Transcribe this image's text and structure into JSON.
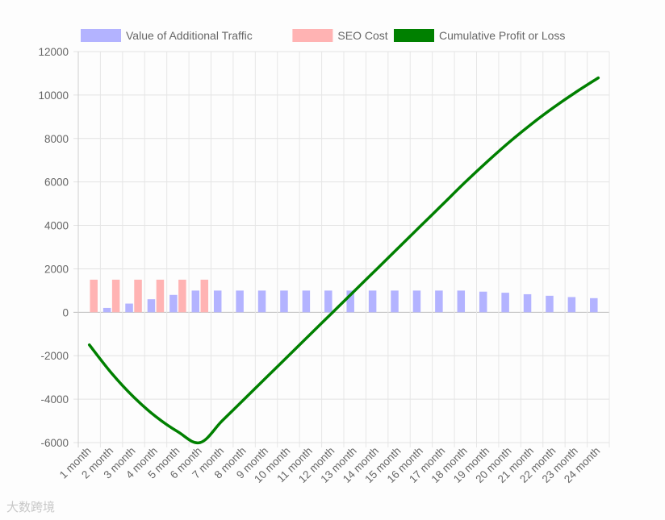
{
  "chart_data": {
    "type": "bar",
    "categories": [
      "1 month",
      "2 month",
      "3 month",
      "4 month",
      "5 month",
      "6 month",
      "7 month",
      "8 month",
      "9 month",
      "10 month",
      "11 month",
      "12 month",
      "13 month",
      "14 month",
      "15 month",
      "16 month",
      "17 month",
      "18 month",
      "19 month",
      "20 month",
      "21 month",
      "22 month",
      "23 month",
      "24 month"
    ],
    "series": [
      {
        "name": "Value of Additional Traffic",
        "type": "bar",
        "color": "#b3b3ff",
        "values": [
          0,
          200,
          400,
          600,
          800,
          1000,
          1000,
          1000,
          1000,
          1000,
          1000,
          1000,
          1000,
          1000,
          1000,
          1000,
          1000,
          1000,
          950,
          900,
          830,
          760,
          700,
          650
        ]
      },
      {
        "name": "SEO Cost",
        "type": "bar",
        "color": "#ffb3b3",
        "values": [
          1500,
          1500,
          1500,
          1500,
          1500,
          1500,
          0,
          0,
          0,
          0,
          0,
          0,
          0,
          0,
          0,
          0,
          0,
          0,
          0,
          0,
          0,
          0,
          0,
          0
        ]
      },
      {
        "name": "Cumulative Profit or Loss",
        "type": "line",
        "color": "#008000",
        "values": [
          -1500,
          -2800,
          -3900,
          -4800,
          -5500,
          -6000,
          -5000,
          -4000,
          -3000,
          -2000,
          -1000,
          0,
          1000,
          2000,
          3000,
          4000,
          5000,
          6000,
          6950,
          7850,
          8680,
          9440,
          10140,
          10790
        ]
      }
    ],
    "ylim": [
      -6000,
      12000
    ],
    "yticks": [
      -6000,
      -4000,
      -2000,
      0,
      2000,
      4000,
      6000,
      8000,
      10000,
      12000
    ],
    "grid": true,
    "legend_position": "top"
  },
  "watermark": {
    "text": "大数跨境"
  }
}
